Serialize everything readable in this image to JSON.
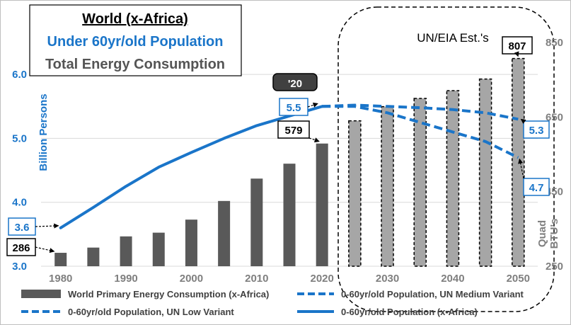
{
  "chart_data": {
    "type": "bar",
    "title": "World (x-Africa)",
    "subtitle_population": "Under 60yr/old Population",
    "subtitle_energy": "Total Energy Consumption",
    "projection_note": "UN/EIA Est.'s",
    "year_callout": "'20",
    "x_axis": {
      "range": [
        1977,
        2053
      ],
      "tick_labels": [
        "1980",
        "1990",
        "2000",
        "2010",
        "2020",
        "2030",
        "2040",
        "2050"
      ]
    },
    "y_left": {
      "label": "Billion Persons",
      "range": [
        3.0,
        6.5
      ],
      "tick_labels": [
        "3.0",
        "4.0",
        "5.0",
        "6.0"
      ]
    },
    "y_right": {
      "label_line1": "Quad",
      "label_line2": "BTU's",
      "range": [
        250,
        850
      ],
      "tick_labels": [
        "250",
        "450",
        "650",
        "850"
      ]
    },
    "colors": {
      "bar": "#595959",
      "projection_bar": "#a6a6a6",
      "line": "#1a75c9",
      "grid": "#d9d9d9",
      "text_blue": "#1a75c9",
      "text_grey": "#7f7f7f"
    },
    "series": [
      {
        "name": "World Primary Energy Consumption (x-Africa)",
        "type": "bar",
        "axis": "right",
        "x": [
          1980,
          1985,
          1990,
          1995,
          2000,
          2005,
          2010,
          2015,
          2020
        ],
        "values": [
          286,
          300,
          330,
          340,
          375,
          425,
          485,
          525,
          579
        ]
      },
      {
        "name": "World Primary Energy Consumption (x-Africa) - projected",
        "type": "bar",
        "axis": "right",
        "dashed": true,
        "x": [
          2025,
          2030,
          2035,
          2040,
          2045,
          2050
        ],
        "values": [
          640,
          678,
          700,
          721,
          752,
          807
        ]
      },
      {
        "name": "0-60yr/old Population (x-Africa)",
        "type": "line",
        "axis": "left",
        "x": [
          1980,
          1985,
          1990,
          1995,
          2000,
          2005,
          2010,
          2015,
          2020
        ],
        "values": [
          3.6,
          3.92,
          4.25,
          4.55,
          4.78,
          5.0,
          5.2,
          5.35,
          5.5
        ]
      },
      {
        "name": "0-60yr/old Population, UN Medium Variant",
        "type": "line",
        "axis": "left",
        "dashed": true,
        "x": [
          2020,
          2025,
          2030,
          2035,
          2040,
          2045,
          2050
        ],
        "values": [
          5.5,
          5.52,
          5.5,
          5.48,
          5.45,
          5.4,
          5.3
        ]
      },
      {
        "name": "0-60yr/old Population, UN Low Variant",
        "type": "line",
        "axis": "left",
        "dashed": true,
        "x": [
          2020,
          2025,
          2030,
          2035,
          2040,
          2045,
          2050
        ],
        "values": [
          5.5,
          5.5,
          5.4,
          5.25,
          5.1,
          4.95,
          4.7
        ]
      }
    ],
    "callouts": [
      "3.6",
      "286",
      "5.5",
      "579",
      "807",
      "5.3",
      "4.7"
    ],
    "legend": [
      "World Primary Energy Consumption (x-Africa)",
      "0-60yr/old Population, UN Medium Variant",
      "0-60yr/old Population, UN Low Variant",
      "0-60yr/old Population (x-Africa)"
    ]
  }
}
